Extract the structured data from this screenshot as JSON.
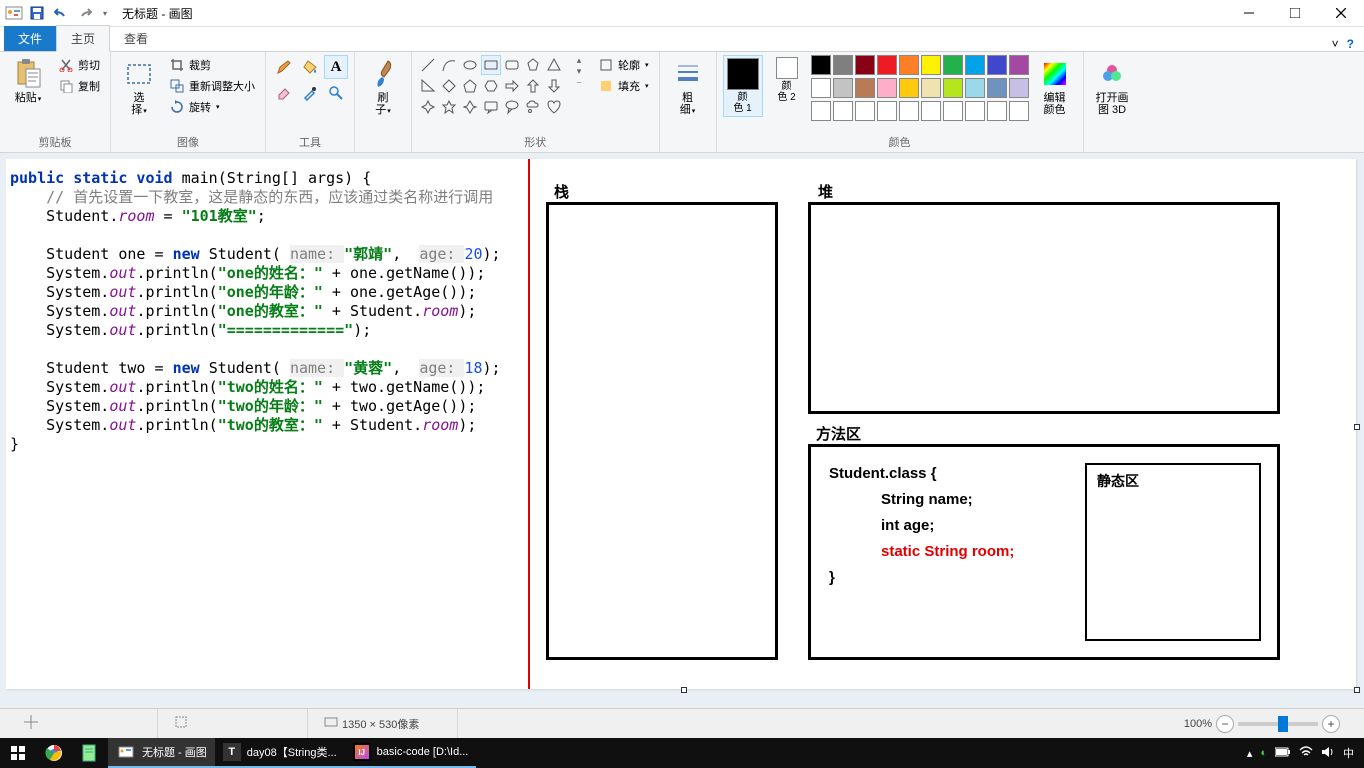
{
  "title": "无标题 - 画图",
  "tabs": {
    "file": "文件",
    "home": "主页",
    "view": "查看"
  },
  "ribbon": {
    "clipboard": {
      "label": "剪贴板",
      "paste": "粘贴",
      "cut": "剪切",
      "copy": "复制"
    },
    "image": {
      "label": "图像",
      "select": "选\n择",
      "crop": "裁剪",
      "resize": "重新调整大小",
      "rotate": "旋转"
    },
    "tools": {
      "label": "工具"
    },
    "brushes": {
      "label": "刷\n子"
    },
    "shapes": {
      "label": "形状",
      "outline": "轮廓",
      "fill": "填充"
    },
    "size": {
      "label": "粗\n细"
    },
    "colors": {
      "label": "颜色",
      "color1": "颜\n色 1",
      "color2": "颜\n色 2",
      "edit": "编辑\n颜色",
      "palette_row1": [
        "#000000",
        "#7f7f7f",
        "#880015",
        "#ed1c24",
        "#ff7f27",
        "#fff200",
        "#22b14c",
        "#00a2e8",
        "#3f48cc",
        "#a349a4"
      ],
      "palette_row2": [
        "#ffffff",
        "#c3c3c3",
        "#b97a57",
        "#ffaec9",
        "#ffc90e",
        "#efe4b0",
        "#b5e61d",
        "#99d9ea",
        "#7092be",
        "#c8bfe7"
      ]
    },
    "paint3d": "打开画\n图 3D",
    "color1_value": "#000000",
    "color2_value": "#ffffff"
  },
  "code": {
    "sig1": "public static void ",
    "sig2": "main(String[] args) {",
    "comment": "    // 首先设置一下教室，这是静态的东西，应该通过类名称进行调用",
    "room_set": "    Student.",
    "room_field": "room",
    "room_eq": " = ",
    "room_val": "\"101教室\"",
    "semi": ";",
    "one_decl1": "    Student one = ",
    "new": "new ",
    "one_decl2": "Student( ",
    "name_p": "name: ",
    "one_name": "\"郭靖\"",
    "comma": ",  ",
    "age_p": "age: ",
    "one_age": "20",
    "paren_end": ");",
    "sout": "    System.",
    "out": "out",
    "println": ".println(",
    "one_s1": "\"one的姓名：\"",
    "plus_getName": " + one.getName());",
    "one_s2": "\"one的年龄：\"",
    "plus_getAge": " + one.getAge());",
    "one_s3": "\"one的教室：\"",
    "plus_room": " + Student.",
    "room_end": ");",
    "sep": "\"=============\"",
    "sep_end": ");",
    "two_decl1": "    Student two = ",
    "two_name": "\"黄蓉\"",
    "two_age": "18",
    "two_s1": "\"two的姓名：\"",
    "two_getName": " + two.getName());",
    "two_s2": "\"two的年龄：\"",
    "two_getAge": " + two.getAge());",
    "two_s3": "\"two的教室：\"",
    "close": "}"
  },
  "diagram": {
    "stack": "栈",
    "heap": "堆",
    "method_area": "方法区",
    "static_area": "静态区",
    "class_open": "Student.class {",
    "field1": "String name;",
    "field2": "int age;",
    "field3": "static String room;",
    "class_close": "}"
  },
  "statusbar": {
    "size_label": "1350 × 530像素",
    "zoom": "100%"
  },
  "taskbar": {
    "paint": "无标题 - 画图",
    "task1": "day08【String类...",
    "task2": "basic-code [D:\\Id...",
    "lang": "中"
  }
}
